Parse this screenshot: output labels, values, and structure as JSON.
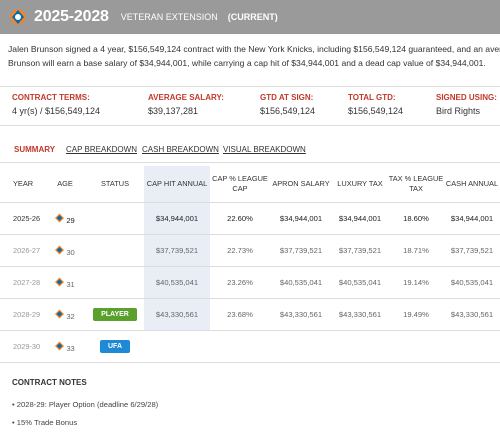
{
  "header": {
    "title": "2025-2028",
    "subtitle": "VETERAN EXTENSION",
    "current": "(CURRENT)"
  },
  "summary_line1": "Jalen Brunson signed a 4 year, $156,549,124 contract with the New York Knicks, including $156,549,124 guaranteed, and an average annual salar",
  "summary_line2": "Brunson will earn a base salary of $34,944,001, while carrying a cap hit of $34,944,001 and a dead cap value of $34,944,001.",
  "terms": [
    {
      "label": "CONTRACT TERMS:",
      "value": "4 yr(s) / $156,549,124"
    },
    {
      "label": "AVERAGE SALARY:",
      "value": "$39,137,281"
    },
    {
      "label": "GTD AT SIGN:",
      "value": "$156,549,124"
    },
    {
      "label": "TOTAL GTD:",
      "value": "$156,549,124"
    },
    {
      "label": "SIGNED USING:",
      "value": "Bird Rights"
    }
  ],
  "tabs": [
    "SUMMARY",
    "CAP BREAKDOWN",
    "CASH BREAKDOWN",
    "VISUAL BREAKDOWN"
  ],
  "table": {
    "headers": [
      "YEAR",
      "AGE",
      "STATUS",
      "CAP HIT ANNUAL",
      "CAP % LEAGUE CAP",
      "APRON SALARY",
      "LUXURY TAX",
      "TAX % LEAGUE TAX",
      "CASH ANNUAL"
    ],
    "rows": [
      {
        "year": "2025-26",
        "age": "29",
        "status": "",
        "cap_hit": "$34,944,001",
        "cap_pct": "22.60%",
        "apron": "$34,944,001",
        "lux": "$34,944,001",
        "tax_pct": "18.60%",
        "cash": "$34,944,001"
      },
      {
        "year": "2026-27",
        "age": "30",
        "status": "",
        "cap_hit": "$37,739,521",
        "cap_pct": "22.73%",
        "apron": "$37,739,521",
        "lux": "$37,739,521",
        "tax_pct": "18.71%",
        "cash": "$37,739,521"
      },
      {
        "year": "2027-28",
        "age": "31",
        "status": "",
        "cap_hit": "$40,535,041",
        "cap_pct": "23.26%",
        "apron": "$40,535,041",
        "lux": "$40,535,041",
        "tax_pct": "19.14%",
        "cash": "$40,535,041"
      },
      {
        "year": "2028-29",
        "age": "32",
        "status": "PLAYER",
        "cap_hit": "$43,330,561",
        "cap_pct": "23.68%",
        "apron": "$43,330,561",
        "lux": "$43,330,561",
        "tax_pct": "19.49%",
        "cash": "$43,330,561"
      },
      {
        "year": "2029-30",
        "age": "33",
        "status": "UFA",
        "cap_hit": "",
        "cap_pct": "",
        "apron": "",
        "lux": "",
        "tax_pct": "",
        "cash": ""
      }
    ]
  },
  "notes": {
    "title": "CONTRACT NOTES",
    "items": [
      "2028-29: Player Option (deadline 6/29/28)",
      "15% Trade Bonus"
    ]
  },
  "colors": {
    "header_bg": "#9a9a9a",
    "accent_red": "#c0392b",
    "player_green": "#5aa02c",
    "ufa_blue": "#1e8ad6",
    "cap_col": "#e9eef6"
  }
}
